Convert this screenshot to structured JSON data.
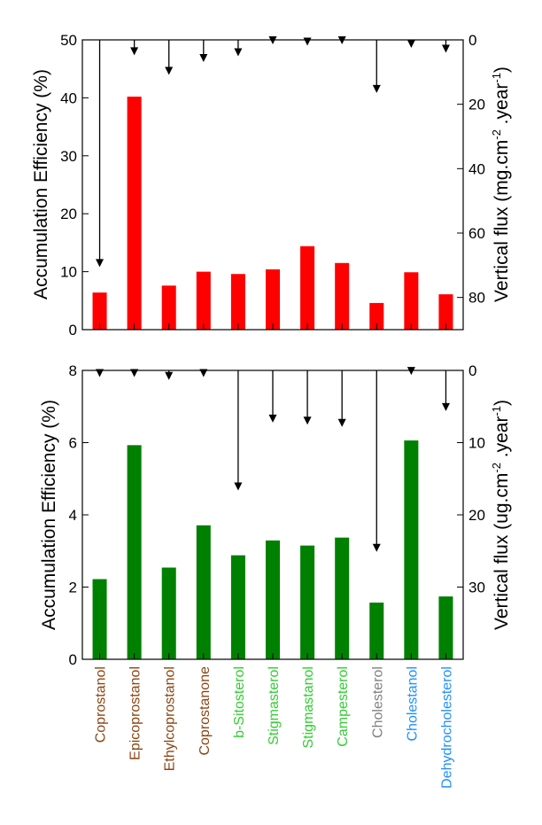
{
  "chart_data": [
    {
      "type": "bar",
      "categories": [
        "Coprostanol",
        "Epicoprostanol",
        "Ethylcoprostanol",
        "Coprostanone",
        "b-Sitosterol",
        "Stigmasterol",
        "Stigmastanol",
        "Campesterol",
        "Cholesterol",
        "Cholestanol",
        "Dehydrocholesterol"
      ],
      "category_colors": [
        "#8B4513",
        "#8B4513",
        "#8B4513",
        "#8B4513",
        "#33CC33",
        "#33CC33",
        "#33CC33",
        "#33CC33",
        "#808080",
        "#1E90FF",
        "#1E90FF"
      ],
      "series": [
        {
          "values": [
            6.4,
            40.2,
            7.6,
            10.0,
            9.6,
            10.4,
            14.4,
            11.5,
            4.6,
            9.9,
            6.1
          ],
          "color": "#ff0000"
        },
        {
          "axis": "right",
          "style": "arrow",
          "values": [
            70.3,
            4.5,
            10.6,
            6.6,
            4.8,
            1.1,
            1.5,
            1.1,
            16.2,
            2.2,
            3.7
          ],
          "color": "#000000"
        }
      ],
      "ylabel": "Accumulation Efficiency (%)",
      "ylim": [
        0,
        50
      ],
      "yticks": [
        0,
        10,
        20,
        30,
        40,
        50
      ],
      "y2label_main": "Vertical flux (mg.cm",
      "y2label_sup1": "-2",
      "y2label_mid": " .year",
      "y2label_sup2": "-1",
      "y2label_end": ")",
      "y2lim": [
        0,
        90
      ],
      "y2ticks": [
        0,
        20,
        40,
        60,
        80
      ],
      "y2_inverted": true,
      "grid": false
    },
    {
      "type": "bar",
      "categories": [
        "Coprostanol",
        "Epicoprostanol",
        "Ethylcoprostanol",
        "Coprostanone",
        "b-Sitosterol",
        "Stigmasterol",
        "Stigmastanol",
        "Campesterol",
        "Cholesterol",
        "Cholestanol",
        "Dehydrocholesterol"
      ],
      "category_colors": [
        "#8B4513",
        "#8B4513",
        "#8B4513",
        "#8B4513",
        "#33CC33",
        "#33CC33",
        "#33CC33",
        "#33CC33",
        "#808080",
        "#1E90FF",
        "#1E90FF"
      ],
      "series": [
        {
          "values": [
            2.22,
            5.93,
            2.54,
            3.71,
            2.88,
            3.29,
            3.15,
            3.37,
            1.57,
            6.06,
            1.74
          ],
          "color": "#008000"
        },
        {
          "axis": "right",
          "style": "arrow",
          "values": [
            0.8,
            0.8,
            1.2,
            0.8,
            16.5,
            7.1,
            7.4,
            7.7,
            25.0,
            0.5,
            5.5
          ],
          "color": "#000000"
        }
      ],
      "ylabel": "Accumulation Efficiency (%)",
      "ylim": [
        0,
        8
      ],
      "yticks": [
        0,
        2,
        4,
        6,
        8
      ],
      "y2label_main": "Vertical flux (ug.cm",
      "y2label_sup1": "-2",
      "y2label_mid": " .year",
      "y2label_sup2": "-1",
      "y2label_end": ")",
      "y2lim": [
        0,
        40
      ],
      "y2ticks": [
        0,
        10,
        20,
        30
      ],
      "y2_inverted": true,
      "grid": false
    }
  ]
}
